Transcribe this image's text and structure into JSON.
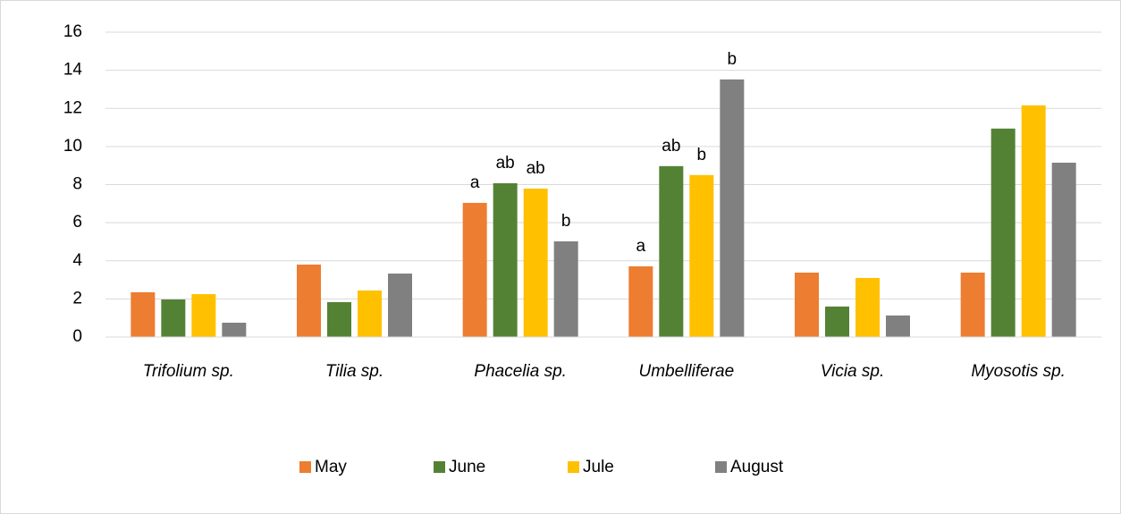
{
  "chart_data": {
    "type": "bar",
    "categories": [
      "Trifolium sp.",
      "Tilia sp.",
      "Phacelia sp.",
      "Umbelliferae",
      "Vicia sp.",
      "Myosotis sp."
    ],
    "series": [
      {
        "name": "May",
        "color": "#ed7d31",
        "values": [
          2.35,
          3.8,
          7.04,
          3.71,
          3.38,
          3.38
        ],
        "annotations": [
          null,
          null,
          "a",
          "a",
          null,
          null
        ]
      },
      {
        "name": "June",
        "color": "#548235",
        "values": [
          1.97,
          1.83,
          8.07,
          8.97,
          1.6,
          10.94
        ],
        "annotations": [
          null,
          null,
          "ab",
          "ab",
          null,
          null
        ]
      },
      {
        "name": "Jule",
        "color": "#ffc000",
        "values": [
          2.25,
          2.44,
          7.79,
          8.5,
          3.1,
          12.16
        ],
        "annotations": [
          null,
          null,
          "ab",
          "b",
          null,
          null
        ]
      },
      {
        "name": "August",
        "color": "#808080",
        "values": [
          0.75,
          3.33,
          5.02,
          13.52,
          1.13,
          9.15
        ],
        "annotations": [
          null,
          null,
          "b",
          "b",
          null,
          null
        ]
      }
    ],
    "ylim": [
      0,
      16
    ],
    "yticks": [
      0,
      2,
      4,
      6,
      8,
      10,
      12,
      14,
      16
    ],
    "grid": true,
    "legend": "bottom"
  }
}
